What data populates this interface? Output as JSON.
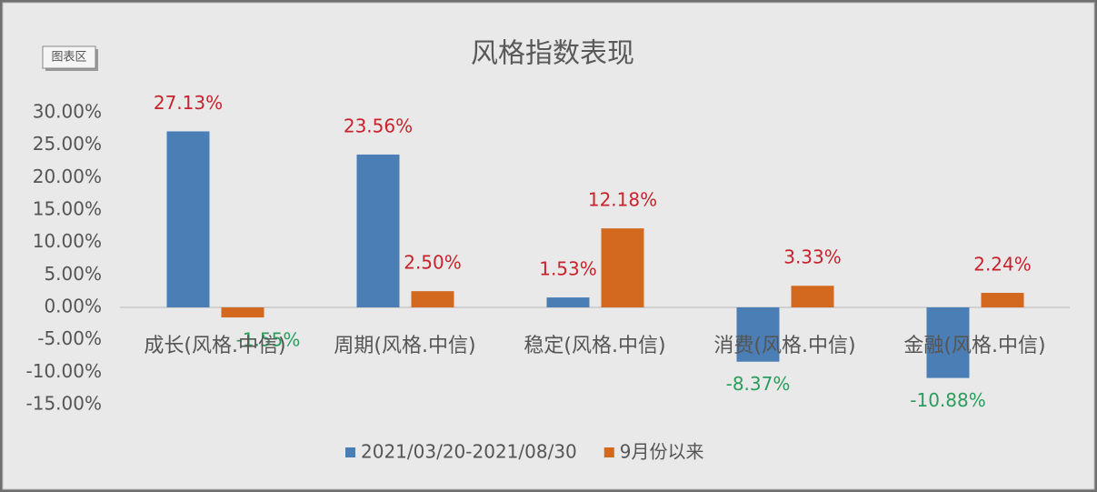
{
  "ui": {
    "tooltip": "图表区"
  },
  "chart_data": {
    "type": "bar",
    "title": "风格指数表现",
    "categories": [
      "成长(风格.中信)",
      "周期(风格.中信)",
      "稳定(风格.中信)",
      "消费(风格.中信)",
      "金融(风格.中信)"
    ],
    "series": [
      {
        "name": "2021/03/20-2021/08/30",
        "color": "#4a7eb5",
        "values": [
          27.13,
          23.56,
          1.53,
          -8.37,
          -10.88
        ],
        "value_labels": [
          "27.13%",
          "23.56%",
          "1.53%",
          "-8.37%",
          "-10.88%"
        ]
      },
      {
        "name": "9月份以来",
        "color": "#d2691e",
        "values": [
          -1.55,
          2.5,
          12.18,
          3.33,
          2.24
        ],
        "value_labels": [
          "-1.55%",
          "2.50%",
          "12.18%",
          "3.33%",
          "2.24%"
        ]
      }
    ],
    "ylim": [
      -15,
      30
    ],
    "yticks": [
      {
        "value": -15,
        "label": "-15.00%"
      },
      {
        "value": -10,
        "label": "-10.00%"
      },
      {
        "value": -5,
        "label": "-5.00%"
      },
      {
        "value": 0,
        "label": "0.00%"
      },
      {
        "value": 5,
        "label": "5.00%"
      },
      {
        "value": 10,
        "label": "10.00%"
      },
      {
        "value": 15,
        "label": "15.00%"
      },
      {
        "value": 20,
        "label": "20.00%"
      },
      {
        "value": 25,
        "label": "25.00%"
      },
      {
        "value": 30,
        "label": "30.00%"
      }
    ],
    "grid": false,
    "legend": "bottom",
    "positive_label_color": "#c8232c",
    "negative_label_color": "#2a9d5c"
  }
}
